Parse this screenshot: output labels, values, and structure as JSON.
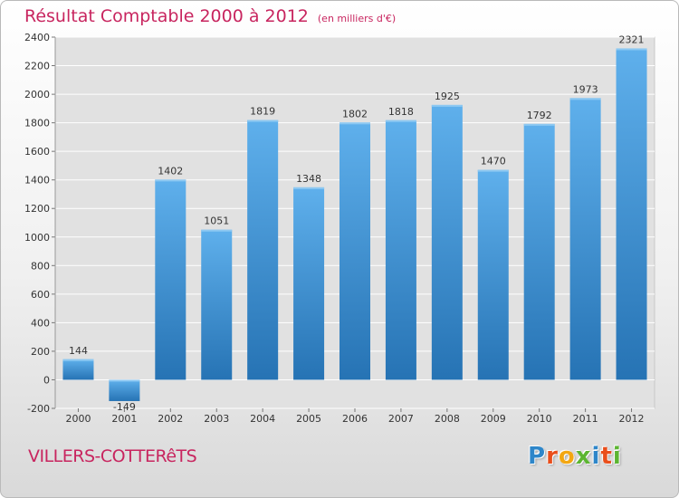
{
  "title": {
    "main": "Résultat Comptable 2000 à 2012",
    "unit": "(en milliers d'€)"
  },
  "commune": "VILLERS-COTTERêTS",
  "logo": {
    "letters": [
      "P",
      "r",
      "o",
      "x",
      "i",
      "t",
      "i"
    ],
    "colors": [
      "#2e86c9",
      "#e94e1b",
      "#f3a712",
      "#5cb531",
      "#2e86c9",
      "#e94e1b",
      "#5cb531"
    ]
  },
  "colors": {
    "bar": "#5aaae6",
    "bar_dark": "#2878b8",
    "title": "#c8255f"
  },
  "chart_data": {
    "type": "bar",
    "title": "Résultat Comptable 2000 à 2012",
    "xlabel": "",
    "ylabel": "en milliers d'€",
    "categories": [
      "2000",
      "2001",
      "2002",
      "2003",
      "2004",
      "2005",
      "2006",
      "2007",
      "2008",
      "2009",
      "2010",
      "2011",
      "2012"
    ],
    "values": [
      144,
      -149,
      1402,
      1051,
      1819,
      1348,
      1802,
      1818,
      1925,
      1470,
      1792,
      1973,
      2321
    ],
    "ylim": [
      -200,
      2400
    ],
    "yticks": [
      -200,
      0,
      200,
      400,
      600,
      800,
      1000,
      1200,
      1400,
      1600,
      1800,
      2000,
      2200,
      2400
    ],
    "grid": true
  }
}
